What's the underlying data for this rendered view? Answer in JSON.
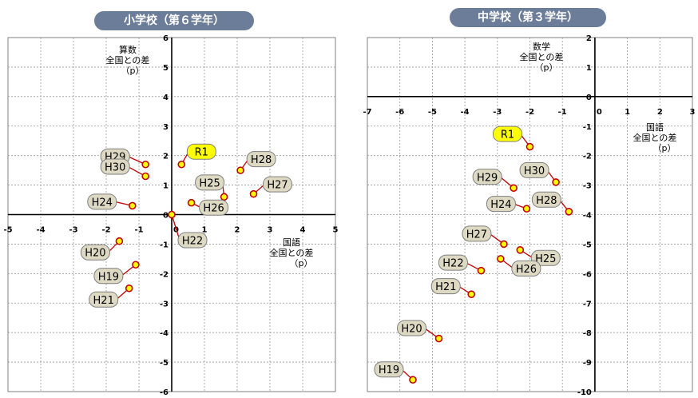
{
  "chart_data": [
    {
      "type": "scatter",
      "title": "小学校（第６学年）",
      "xlabel": [
        "国語",
        "全国との差",
        "（p）"
      ],
      "ylabel": [
        "算数",
        "全国との差",
        "（p）"
      ],
      "xlim": [
        -5,
        5
      ],
      "ylim": [
        -6,
        6
      ],
      "xticks": [
        -5,
        -4,
        -3,
        -2,
        -1,
        0,
        1,
        2,
        3,
        4,
        5
      ],
      "yticks": [
        -6,
        -5,
        -4,
        -3,
        -2,
        -1,
        1,
        2,
        3,
        4,
        5,
        6
      ],
      "grid": true,
      "points": [
        {
          "label": "R1",
          "x": 0.3,
          "y": 1.7,
          "highlight": true
        },
        {
          "label": "H29",
          "x": -0.8,
          "y": 1.7
        },
        {
          "label": "H30",
          "x": -0.8,
          "y": 1.3
        },
        {
          "label": "H28",
          "x": 2.1,
          "y": 1.5
        },
        {
          "label": "H25",
          "x": 1.6,
          "y": 0.6
        },
        {
          "label": "H27",
          "x": 2.5,
          "y": 0.7
        },
        {
          "label": "H24",
          "x": -1.2,
          "y": 0.3
        },
        {
          "label": "H26",
          "x": 0.6,
          "y": 0.4
        },
        {
          "label": "H22",
          "x": 0.0,
          "y": 0.0
        },
        {
          "label": "H20",
          "x": -1.6,
          "y": -0.9
        },
        {
          "label": "H19",
          "x": -1.1,
          "y": -1.7
        },
        {
          "label": "H21",
          "x": -1.3,
          "y": -2.5
        }
      ]
    },
    {
      "type": "scatter",
      "title": "中学校（第３学年）",
      "xlabel": [
        "国語",
        "全国との差",
        "（p）"
      ],
      "ylabel": [
        "数学",
        "全国との差",
        "（p）"
      ],
      "xlim": [
        -7,
        3
      ],
      "ylim": [
        -10,
        2
      ],
      "xticks": [
        -7,
        -6,
        -5,
        -4,
        -3,
        -2,
        -1,
        0,
        1,
        2,
        3
      ],
      "yticks": [
        -10,
        -9,
        -8,
        -7,
        -6,
        -5,
        -4,
        -3,
        -2,
        -1,
        0,
        1,
        2
      ],
      "grid": true,
      "points": [
        {
          "label": "R1",
          "x": -2.0,
          "y": -1.7,
          "highlight": true
        },
        {
          "label": "H29",
          "x": -2.5,
          "y": -3.1
        },
        {
          "label": "H30",
          "x": -1.2,
          "y": -2.9
        },
        {
          "label": "H24",
          "x": -2.1,
          "y": -3.8
        },
        {
          "label": "H28",
          "x": -0.8,
          "y": -3.9
        },
        {
          "label": "H27",
          "x": -2.8,
          "y": -5.0
        },
        {
          "label": "H25",
          "x": -2.3,
          "y": -5.2
        },
        {
          "label": "H22",
          "x": -3.5,
          "y": -5.9
        },
        {
          "label": "H26",
          "x": -2.9,
          "y": -5.5
        },
        {
          "label": "H21",
          "x": -3.8,
          "y": -6.7
        },
        {
          "label": "H20",
          "x": -4.8,
          "y": -8.2
        },
        {
          "label": "H19",
          "x": -5.6,
          "y": -9.6
        }
      ]
    }
  ]
}
